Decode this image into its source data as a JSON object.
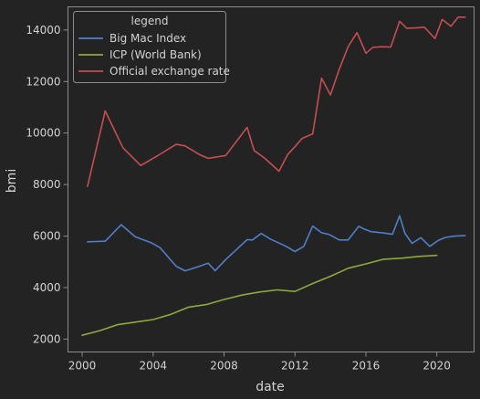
{
  "chart_data": {
    "type": "line",
    "title": "",
    "xlabel": "date",
    "ylabel": "bmi",
    "xlim": [
      1999.2,
      2022.1
    ],
    "ylim": [
      1500,
      14900
    ],
    "x_ticks": [
      2000,
      2004,
      2008,
      2012,
      2016,
      2020
    ],
    "x_tick_labels": [
      "2000",
      "2004",
      "2008",
      "2012",
      "2016",
      "2020"
    ],
    "y_ticks": [
      2000,
      4000,
      6000,
      8000,
      10000,
      12000,
      14000
    ],
    "y_tick_labels": [
      "2000",
      "4000",
      "6000",
      "8000",
      "10000",
      "12000",
      "14000"
    ],
    "grid": false,
    "legend": {
      "title": "legend",
      "position": "top-left"
    },
    "colors": {
      "background": "#232323",
      "axes_frame": "#8c8c8c",
      "text": "#d2d2d2"
    },
    "series": [
      {
        "name": "Big Mac Index",
        "color": "#4f7fc8",
        "x": [
          2000.3,
          2000.8,
          2001.3,
          2002.2,
          2003.0,
          2003.9,
          2004.4,
          2005.3,
          2005.8,
          2006.5,
          2007.1,
          2007.5,
          2008.1,
          2009.3,
          2009.6,
          2010.1,
          2010.6,
          2011.5,
          2012.0,
          2012.5,
          2013.0,
          2013.5,
          2013.9,
          2014.5,
          2015.0,
          2015.6,
          2015.9,
          2016.3,
          2016.6,
          2017.0,
          2017.5,
          2017.9,
          2018.2,
          2018.6,
          2019.1,
          2019.6,
          2020.1,
          2020.5,
          2021.0,
          2021.6
        ],
        "y": [
          5780,
          5790,
          5800,
          6440,
          5970,
          5740,
          5550,
          4830,
          4650,
          4800,
          4950,
          4660,
          5090,
          5860,
          5850,
          6100,
          5890,
          5600,
          5400,
          5600,
          6390,
          6130,
          6070,
          5850,
          5850,
          6380,
          6270,
          6170,
          6150,
          6120,
          6070,
          6790,
          6110,
          5720,
          5940,
          5600,
          5840,
          5950,
          6000,
          6020
        ]
      },
      {
        "name": "ICP (World Bank)",
        "color": "#8fa83e",
        "x": [
          2000.0,
          2001.0,
          2002.0,
          2003.0,
          2004.0,
          2005.0,
          2006.0,
          2007.0,
          2008.0,
          2009.0,
          2010.0,
          2011.0,
          2012.0,
          2013.0,
          2014.0,
          2015.0,
          2016.0,
          2017.0,
          2018.0,
          2019.0,
          2020.0
        ],
        "y": [
          2150,
          2330,
          2560,
          2660,
          2760,
          2960,
          3240,
          3340,
          3540,
          3710,
          3830,
          3910,
          3850,
          4160,
          4440,
          4750,
          4920,
          5100,
          5140,
          5210,
          5250
        ]
      },
      {
        "name": "Official exchange rate",
        "color": "#c44e52",
        "x": [
          2000.3,
          2001.3,
          2002.3,
          2003.3,
          2004.3,
          2005.3,
          2005.8,
          2006.6,
          2007.1,
          2008.1,
          2009.3,
          2009.7,
          2010.3,
          2011.1,
          2011.6,
          2012.0,
          2012.4,
          2013.0,
          2013.5,
          2014.0,
          2014.5,
          2015.0,
          2015.5,
          2016.0,
          2016.4,
          2016.9,
          2017.4,
          2017.9,
          2018.3,
          2018.8,
          2019.3,
          2019.9,
          2020.3,
          2020.8,
          2021.2,
          2021.6
        ],
        "y": [
          7930,
          10860,
          9430,
          8740,
          9140,
          9560,
          9500,
          9170,
          9020,
          9130,
          10220,
          9320,
          9020,
          8520,
          9180,
          9470,
          9790,
          9970,
          12130,
          11480,
          12480,
          13350,
          13900,
          13100,
          13330,
          13350,
          13340,
          14340,
          14070,
          14080,
          14110,
          13670,
          14410,
          14150,
          14500,
          14500
        ]
      }
    ]
  }
}
